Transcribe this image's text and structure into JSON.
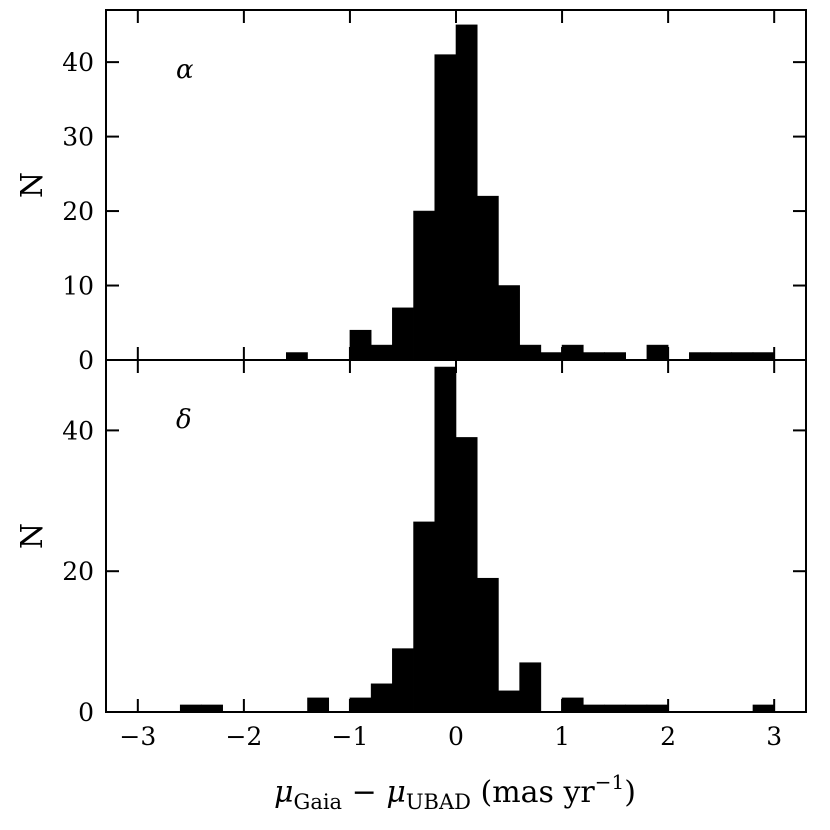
{
  "chart_data": [
    {
      "type": "bar",
      "panel_label": "α",
      "ylabel": "N",
      "xlim": [
        -3.3,
        3.3
      ],
      "ylim": [
        0,
        47
      ],
      "yticks": [
        0,
        10,
        20,
        30,
        40
      ],
      "bin_width": 0.2,
      "bins": [
        {
          "x": -1.6,
          "value": 1
        },
        {
          "x": -1.0,
          "value": 4
        },
        {
          "x": -0.8,
          "value": 2
        },
        {
          "x": -0.6,
          "value": 7
        },
        {
          "x": -0.4,
          "value": 20
        },
        {
          "x": -0.2,
          "value": 41
        },
        {
          "x": 0.0,
          "value": 45
        },
        {
          "x": 0.2,
          "value": 22
        },
        {
          "x": 0.4,
          "value": 10
        },
        {
          "x": 0.6,
          "value": 2
        },
        {
          "x": 0.8,
          "value": 1
        },
        {
          "x": 1.0,
          "value": 2
        },
        {
          "x": 1.2,
          "value": 1
        },
        {
          "x": 1.4,
          "value": 1
        },
        {
          "x": 1.8,
          "value": 2
        },
        {
          "x": 2.2,
          "value": 1
        },
        {
          "x": 2.4,
          "value": 1
        },
        {
          "x": 2.6,
          "value": 1
        },
        {
          "x": 2.8,
          "value": 1
        }
      ]
    },
    {
      "type": "bar",
      "panel_label": "δ",
      "ylabel": "N",
      "xlabel_parts": {
        "mu": "μ",
        "sub1": "Gaia",
        "minus": " − ",
        "sub2": "UBAD",
        "unit_open": " (mas yr",
        "unit_exp": "−1",
        "unit_close": ")"
      },
      "xlim": [
        -3.3,
        3.3
      ],
      "ylim": [
        0,
        50
      ],
      "yticks": [
        0,
        20,
        40
      ],
      "xticks": [
        -3,
        -2,
        -1,
        0,
        1,
        2,
        3
      ],
      "xtick_labels": [
        "−3",
        "−2",
        "−1",
        "0",
        "1",
        "2",
        "3"
      ],
      "bin_width": 0.2,
      "bins": [
        {
          "x": -2.6,
          "value": 1
        },
        {
          "x": -2.4,
          "value": 1
        },
        {
          "x": -1.4,
          "value": 2
        },
        {
          "x": -1.0,
          "value": 2
        },
        {
          "x": -0.8,
          "value": 4
        },
        {
          "x": -0.6,
          "value": 9
        },
        {
          "x": -0.4,
          "value": 27
        },
        {
          "x": -0.2,
          "value": 49
        },
        {
          "x": 0.0,
          "value": 39
        },
        {
          "x": 0.2,
          "value": 19
        },
        {
          "x": 0.4,
          "value": 3
        },
        {
          "x": 0.6,
          "value": 7
        },
        {
          "x": 1.0,
          "value": 2
        },
        {
          "x": 1.2,
          "value": 1
        },
        {
          "x": 1.4,
          "value": 1
        },
        {
          "x": 1.6,
          "value": 1
        },
        {
          "x": 1.8,
          "value": 1
        },
        {
          "x": 2.8,
          "value": 1
        }
      ]
    }
  ]
}
